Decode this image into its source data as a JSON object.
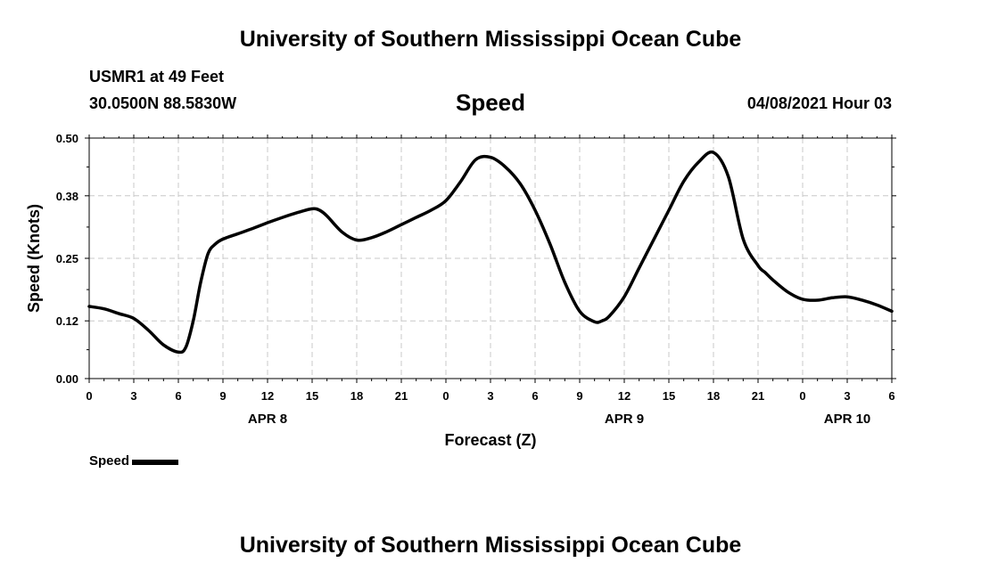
{
  "header": {
    "title": "University of Southern Mississippi Ocean Cube",
    "station": "USMR1 at 49 Feet",
    "coords": "30.0500N  88.5830W",
    "subtitle": "Speed",
    "datestamp": "04/08/2021 Hour 03"
  },
  "footer": {
    "title": "University of Southern Mississippi Ocean Cube"
  },
  "legend": {
    "label": "Speed"
  },
  "chart_data": {
    "type": "line",
    "title": "Speed",
    "xlabel": "Forecast (Z)",
    "ylabel": "Speed (Knots)",
    "xlim": [
      0,
      54
    ],
    "ylim": [
      0,
      0.5
    ],
    "y_ticks": [
      "0.00",
      "0.12",
      "0.25",
      "0.38",
      "0.50"
    ],
    "x_ticks": [
      0,
      3,
      6,
      9,
      12,
      15,
      18,
      21,
      24,
      27,
      30,
      33,
      36,
      39,
      42,
      45,
      48,
      51,
      54
    ],
    "x_tick_labels": [
      "0",
      "3",
      "6",
      "9",
      "12",
      "15",
      "18",
      "21",
      "0",
      "3",
      "6",
      "9",
      "12",
      "15",
      "18",
      "21",
      "0",
      "3",
      "6"
    ],
    "day_labels": [
      {
        "label": "APR 8",
        "hour": 12
      },
      {
        "label": "APR 9",
        "hour": 36
      },
      {
        "label": "APR 10",
        "hour": 51
      }
    ],
    "grid": true,
    "legend_position": "bottom-left",
    "series": [
      {
        "name": "Speed",
        "color": "#000000",
        "x": [
          0,
          1,
          2,
          3,
          4,
          5,
          6,
          6.5,
          7,
          7.5,
          8,
          8.5,
          9,
          10,
          11,
          12,
          13,
          14,
          15,
          15.5,
          16,
          17,
          18,
          19,
          20,
          21,
          22,
          23,
          24,
          25,
          26,
          27,
          28,
          29,
          30,
          31,
          32,
          33,
          34,
          34.5,
          35,
          36,
          37,
          38,
          39,
          40,
          41,
          42,
          43,
          44,
          45,
          45.5,
          46,
          47,
          48,
          49,
          50,
          51,
          52,
          53,
          54
        ],
        "y": [
          0.15,
          0.145,
          0.135,
          0.125,
          0.1,
          0.07,
          0.055,
          0.065,
          0.12,
          0.2,
          0.26,
          0.28,
          0.29,
          0.301,
          0.312,
          0.324,
          0.335,
          0.345,
          0.353,
          0.35,
          0.338,
          0.305,
          0.288,
          0.293,
          0.305,
          0.32,
          0.335,
          0.35,
          0.37,
          0.41,
          0.455,
          0.46,
          0.44,
          0.405,
          0.35,
          0.28,
          0.2,
          0.14,
          0.118,
          0.12,
          0.13,
          0.17,
          0.23,
          0.29,
          0.35,
          0.41,
          0.45,
          0.47,
          0.42,
          0.29,
          0.235,
          0.22,
          0.205,
          0.18,
          0.165,
          0.163,
          0.168,
          0.17,
          0.163,
          0.153,
          0.14
        ]
      }
    ]
  }
}
